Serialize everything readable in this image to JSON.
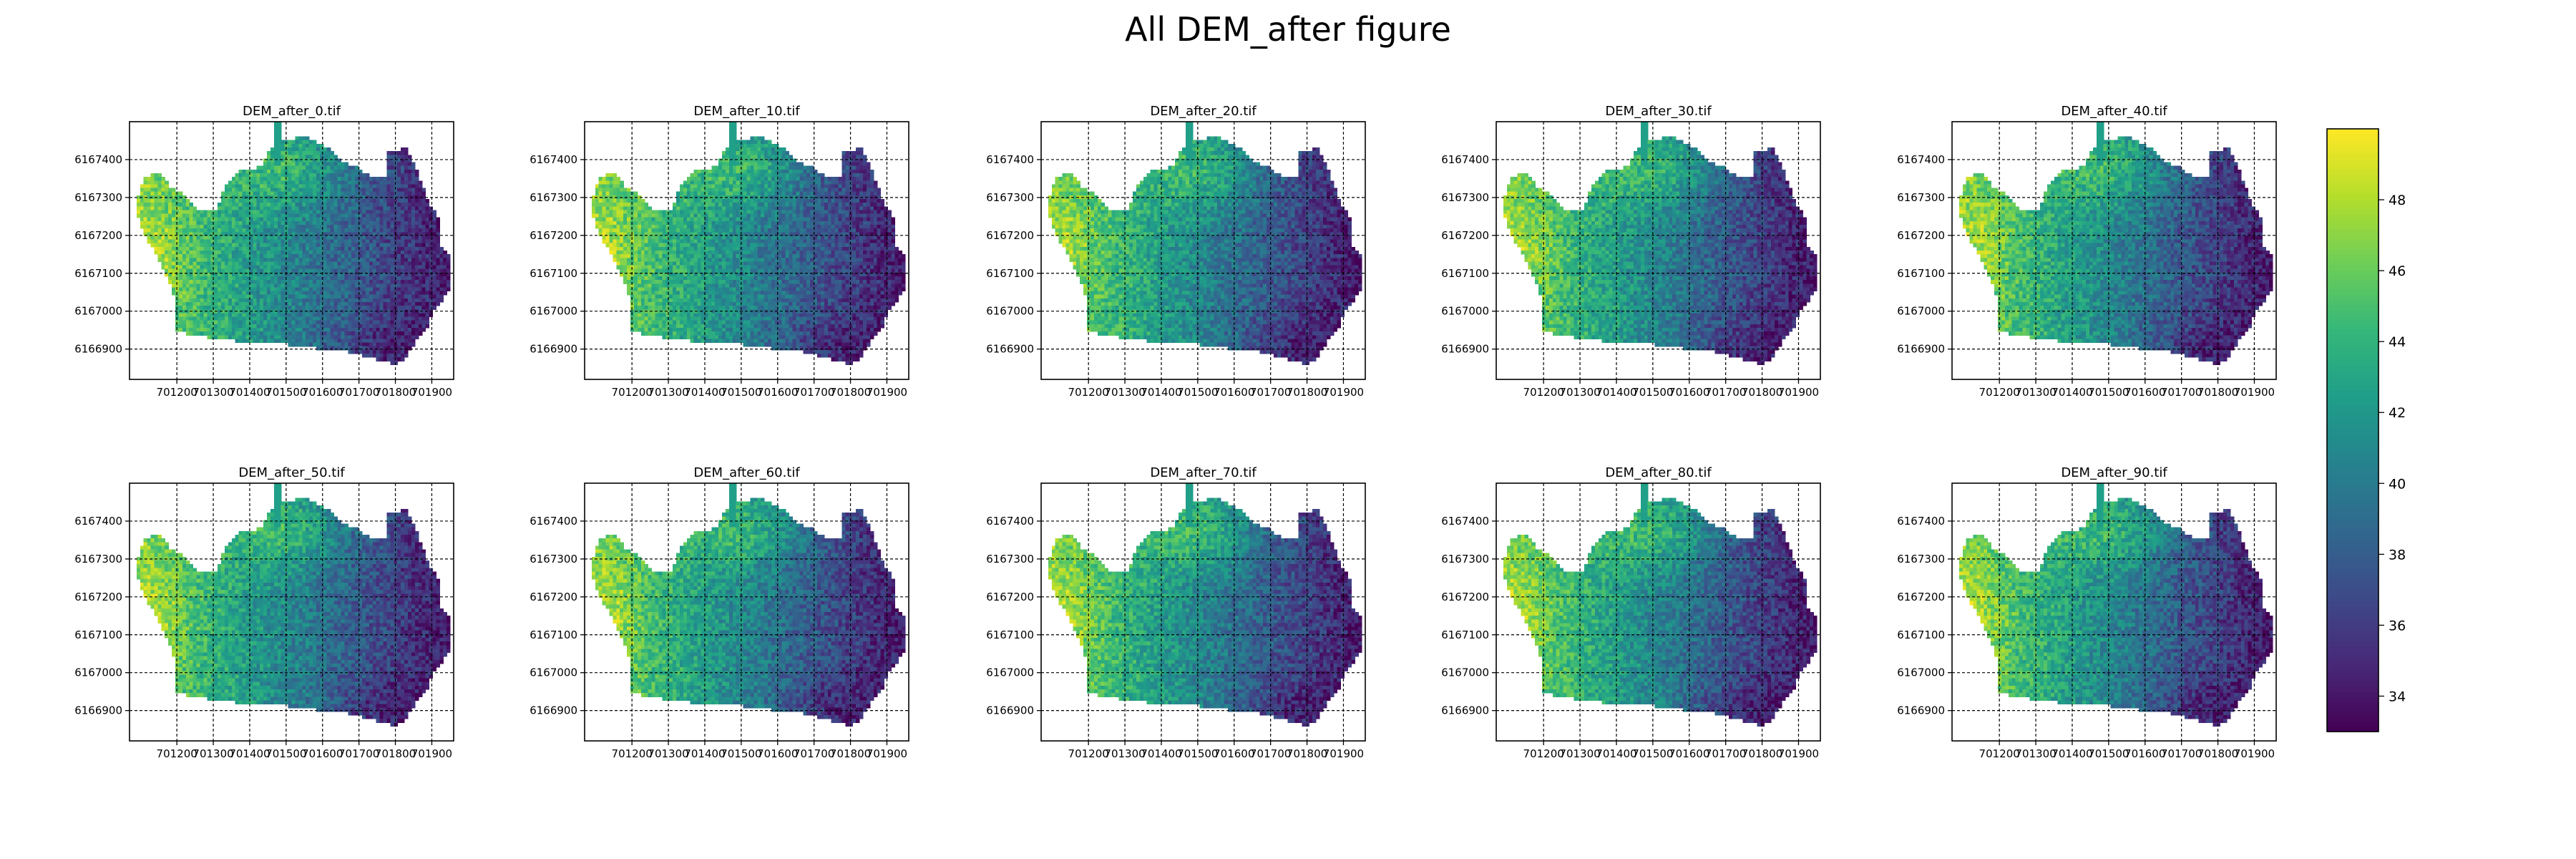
{
  "figure": {
    "title": "All DEM_after figure"
  },
  "chart_data": {
    "type": "heatmap",
    "colormap": "viridis",
    "colormap_stops": [
      "#440154",
      "#482878",
      "#3e4989",
      "#31688e",
      "#26828e",
      "#1f9e89",
      "#35b779",
      "#6ece58",
      "#b5de2b",
      "#fde725"
    ],
    "value_range": [
      33,
      50
    ],
    "x_ticks": [
      701200,
      701300,
      701400,
      701500,
      701600,
      701700,
      701800,
      701900
    ],
    "x_tick_labels": [
      "701200",
      "701300",
      "701400",
      "701500",
      "701600",
      "701700",
      "701800",
      "701900"
    ],
    "y_ticks": [
      6167400,
      6167300,
      6167200,
      6167100,
      6167000,
      6166900
    ],
    "y_tick_labels": [
      "6167400",
      "6167300",
      "6167200",
      "6167100",
      "6167000",
      "6166900"
    ],
    "xlim": [
      701070,
      701960
    ],
    "ylim": [
      6166820,
      6167500
    ],
    "grid": true,
    "grid_style": "dashed",
    "colorbar": {
      "ticks": [
        34,
        36,
        38,
        40,
        42,
        44,
        46,
        48
      ],
      "tick_labels": [
        "34",
        "36",
        "38",
        "40",
        "42",
        "44",
        "46",
        "48"
      ],
      "placement": "right"
    },
    "panels": [
      {
        "title": "DEM_after_0.tif"
      },
      {
        "title": "DEM_after_10.tif"
      },
      {
        "title": "DEM_after_20.tif"
      },
      {
        "title": "DEM_after_30.tif"
      },
      {
        "title": "DEM_after_40.tif"
      },
      {
        "title": "DEM_after_50.tif"
      },
      {
        "title": "DEM_after_60.tif"
      },
      {
        "title": "DEM_after_70.tif"
      },
      {
        "title": "DEM_after_80.tif"
      },
      {
        "title": "DEM_after_90.tif"
      }
    ]
  }
}
